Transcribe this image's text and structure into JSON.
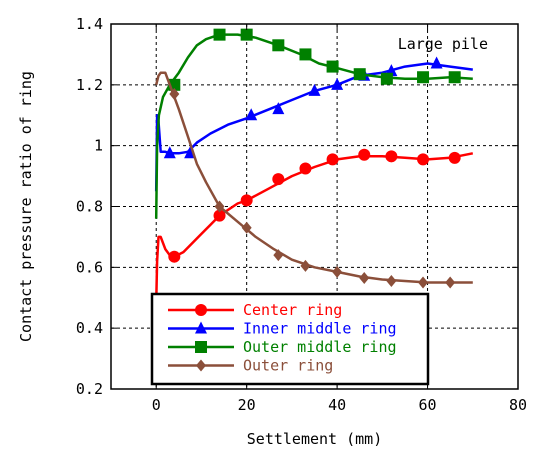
{
  "chart_data": {
    "type": "line",
    "xlabel": "Settlement (mm)",
    "ylabel": "Contact pressure ratio of ring",
    "annotation": "Large pile",
    "xlim": [
      -10,
      80
    ],
    "ylim": [
      0.2,
      1.4
    ],
    "xticks": [
      "0",
      "20",
      "40",
      "60",
      "80"
    ],
    "yticks": [
      "0.2",
      "0.4",
      "0.6",
      "0.8",
      "1",
      "1.2",
      "1.4"
    ],
    "grid": true,
    "legend_position": "bottom-left",
    "series": [
      {
        "name": "Center ring",
        "color": "#ff0000",
        "marker": "circle",
        "line": [
          [
            0,
            0.48
          ],
          [
            0.2,
            0.62
          ],
          [
            0.5,
            0.7
          ],
          [
            1,
            0.7
          ],
          [
            2,
            0.66
          ],
          [
            3,
            0.64
          ],
          [
            4,
            0.635
          ],
          [
            6,
            0.65
          ],
          [
            8,
            0.68
          ],
          [
            10,
            0.71
          ],
          [
            12,
            0.74
          ],
          [
            14,
            0.77
          ],
          [
            18,
            0.81
          ],
          [
            20,
            0.82
          ],
          [
            25,
            0.86
          ],
          [
            30,
            0.9
          ],
          [
            35,
            0.93
          ],
          [
            40,
            0.955
          ],
          [
            45,
            0.965
          ],
          [
            50,
            0.965
          ],
          [
            55,
            0.96
          ],
          [
            60,
            0.955
          ],
          [
            65,
            0.96
          ],
          [
            70,
            0.975
          ]
        ],
        "markers": [
          [
            4,
            0.635
          ],
          [
            14,
            0.77
          ],
          [
            20,
            0.82
          ],
          [
            27,
            0.89
          ],
          [
            33,
            0.925
          ],
          [
            39,
            0.955
          ],
          [
            46,
            0.97
          ],
          [
            52,
            0.965
          ],
          [
            59,
            0.955
          ],
          [
            66,
            0.96
          ]
        ]
      },
      {
        "name": "Inner middle ring",
        "color": "#0000ff",
        "marker": "triangle",
        "line": [
          [
            0,
            0.85
          ],
          [
            0.2,
            1.1
          ],
          [
            0.5,
            1.08
          ],
          [
            1,
            0.98
          ],
          [
            2,
            0.98
          ],
          [
            3,
            0.975
          ],
          [
            5,
            0.975
          ],
          [
            7,
            0.98
          ],
          [
            9,
            1.01
          ],
          [
            12,
            1.04
          ],
          [
            16,
            1.07
          ],
          [
            20,
            1.09
          ],
          [
            25,
            1.12
          ],
          [
            30,
            1.15
          ],
          [
            35,
            1.18
          ],
          [
            40,
            1.2
          ],
          [
            45,
            1.23
          ],
          [
            50,
            1.24
          ],
          [
            55,
            1.26
          ],
          [
            60,
            1.27
          ],
          [
            65,
            1.26
          ],
          [
            70,
            1.25
          ]
        ],
        "markers": [
          [
            3,
            0.975
          ],
          [
            7.5,
            0.975
          ],
          [
            21,
            1.1
          ],
          [
            27,
            1.12
          ],
          [
            35,
            1.18
          ],
          [
            40,
            1.2
          ],
          [
            46,
            1.23
          ],
          [
            52,
            1.245
          ],
          [
            62,
            1.27
          ]
        ]
      },
      {
        "name": "Outer middle ring",
        "color": "#008000",
        "marker": "square",
        "line": [
          [
            0,
            0.76
          ],
          [
            0.2,
            1.0
          ],
          [
            0.6,
            1.1
          ],
          [
            1.5,
            1.16
          ],
          [
            3,
            1.2
          ],
          [
            5,
            1.24
          ],
          [
            7,
            1.29
          ],
          [
            9,
            1.33
          ],
          [
            11,
            1.35
          ],
          [
            14,
            1.365
          ],
          [
            18,
            1.365
          ],
          [
            22,
            1.355
          ],
          [
            27,
            1.33
          ],
          [
            32,
            1.3
          ],
          [
            36,
            1.27
          ],
          [
            40,
            1.255
          ],
          [
            45,
            1.235
          ],
          [
            50,
            1.225
          ],
          [
            55,
            1.22
          ],
          [
            60,
            1.22
          ],
          [
            65,
            1.225
          ],
          [
            70,
            1.22
          ]
        ],
        "markers": [
          [
            4,
            1.2
          ],
          [
            14,
            1.365
          ],
          [
            20,
            1.365
          ],
          [
            27,
            1.33
          ],
          [
            33,
            1.3
          ],
          [
            39,
            1.26
          ],
          [
            45,
            1.235
          ],
          [
            51,
            1.22
          ],
          [
            59,
            1.225
          ],
          [
            66,
            1.225
          ]
        ]
      },
      {
        "name": "Outer ring",
        "color": "#8b4f3a",
        "marker": "diamond",
        "line": [
          [
            0,
            1.2
          ],
          [
            0.5,
            1.23
          ],
          [
            1,
            1.24
          ],
          [
            2,
            1.24
          ],
          [
            3,
            1.2
          ],
          [
            5,
            1.12
          ],
          [
            7,
            1.03
          ],
          [
            9,
            0.94
          ],
          [
            11,
            0.88
          ],
          [
            14,
            0.8
          ],
          [
            18,
            0.75
          ],
          [
            22,
            0.7
          ],
          [
            26,
            0.66
          ],
          [
            30,
            0.625
          ],
          [
            35,
            0.6
          ],
          [
            40,
            0.585
          ],
          [
            45,
            0.57
          ],
          [
            50,
            0.56
          ],
          [
            55,
            0.555
          ],
          [
            60,
            0.55
          ],
          [
            65,
            0.55
          ],
          [
            70,
            0.55
          ]
        ],
        "markers": [
          [
            4,
            1.17
          ],
          [
            14,
            0.8
          ],
          [
            20,
            0.73
          ],
          [
            27,
            0.64
          ],
          [
            33,
            0.605
          ],
          [
            40,
            0.585
          ],
          [
            46,
            0.565
          ],
          [
            52,
            0.555
          ],
          [
            59,
            0.55
          ],
          [
            65,
            0.55
          ]
        ]
      }
    ]
  }
}
